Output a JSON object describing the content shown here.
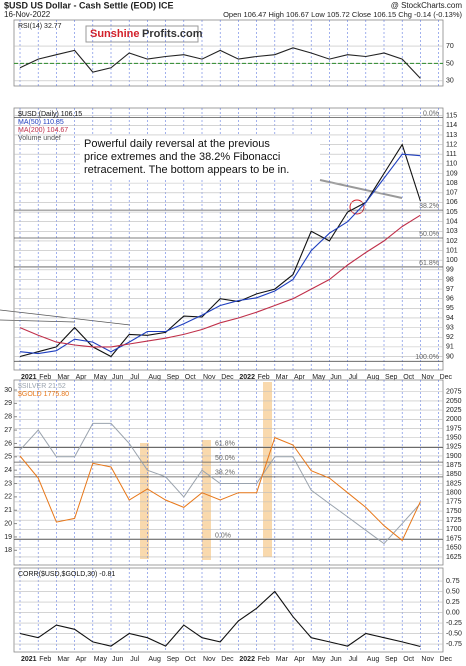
{
  "header": {
    "title": "$USD US Dollar - Cash Settle (EOD) ICE",
    "date": "16-Nov-2022",
    "source": "@ StockCharts.com",
    "quote": "Open 106.47 High 106.67 Low 105.72 Close 106.15 Chg -0.14 (-0.13%)",
    "logo": [
      "Sunshine",
      "Profits.com"
    ]
  },
  "chart_data": [
    {
      "type": "line",
      "ylim": [
        24,
        100
      ],
      "yticks": [
        30,
        50,
        70
      ],
      "reference_lines": [
        {
          "value": 50,
          "color": "#2a8a2a"
        }
      ],
      "series": [
        {
          "name": "RSI(14) 32.77",
          "color": "#222222",
          "values": [
            45,
            55,
            60,
            65,
            40,
            45,
            62,
            55,
            58,
            60,
            55,
            65,
            55,
            58,
            60,
            68,
            62,
            55,
            60,
            58,
            62,
            55,
            32.77,
            null
          ]
        }
      ]
    },
    {
      "type": "line",
      "ylim": [
        88.6,
        115.8
      ],
      "yticks": [
        90,
        91,
        92,
        93,
        94,
        95,
        96,
        97,
        98,
        99,
        100,
        101,
        102,
        103,
        104,
        105,
        106,
        107,
        108,
        109,
        110,
        111,
        112,
        113,
        114,
        115
      ],
      "categories": [
        "2021",
        "Feb",
        "Mar",
        "Apr",
        "May",
        "Jun",
        "Jul",
        "Aug",
        "Sep",
        "Oct",
        "Nov",
        "Dec",
        "2022",
        "Feb",
        "Mar",
        "Apr",
        "May",
        "Jun",
        "Jul",
        "Aug",
        "Sep",
        "Oct",
        "Nov",
        "Dec"
      ],
      "series": [
        {
          "name": "$USD (Daily) 106.15",
          "color": "#111111",
          "values": [
            90.0,
            90.5,
            91.0,
            93.0,
            91.0,
            90.0,
            92.3,
            92.2,
            92.5,
            94.2,
            94.1,
            96.0,
            95.7,
            96.5,
            97.0,
            98.5,
            103.0,
            102.0,
            105.0,
            106.0,
            109.0,
            112.0,
            106.15,
            null
          ]
        },
        {
          "name": "MA(50) 110.85",
          "color": "#1f3fbf",
          "values": [
            90.5,
            90.3,
            90.6,
            91.8,
            91.5,
            90.5,
            91.5,
            92.6,
            92.6,
            93.4,
            94.3,
            95.3,
            95.8,
            96.1,
            96.8,
            98.0,
            101.0,
            102.8,
            104.0,
            106.0,
            108.5,
            111.0,
            110.85,
            null
          ]
        },
        {
          "name": "MA(200) 104.67",
          "color": "#c0304a",
          "values": [
            93.0,
            92.2,
            91.5,
            91.2,
            91.0,
            91.0,
            91.3,
            91.6,
            91.9,
            92.3,
            92.8,
            93.5,
            94.0,
            94.6,
            95.3,
            96.0,
            97.0,
            98.0,
            99.5,
            100.8,
            102.0,
            103.5,
            104.67,
            null
          ]
        }
      ],
      "legend_extra": "Volume undef",
      "fib": [
        {
          "label": "0.0%",
          "value": 114.8
        },
        {
          "label": "38.2%",
          "value": 105.2
        },
        {
          "label": "50.0%",
          "value": 102.3
        },
        {
          "label": "61.8%",
          "value": 99.3
        },
        {
          "label": "100.0%",
          "value": 89.5
        }
      ],
      "annotation": [
        "Powerful daily reversal at the previous",
        "price extremes and the 38.2% Fibonacci",
        "retracement. The bottom appears to be in."
      ]
    },
    {
      "type": "line",
      "ylim": [
        1603,
        2107
      ],
      "yticks": [
        1625,
        1650,
        1675,
        1700,
        1725,
        1750,
        1775,
        1800,
        1825,
        1850,
        1875,
        1900,
        1925,
        1950,
        1975,
        2000,
        2025,
        2050,
        2075
      ],
      "y2lim": [
        16.9,
        30.75
      ],
      "y2ticks": [
        18,
        19,
        20,
        21,
        22,
        23,
        24,
        25,
        26,
        27,
        28,
        29,
        30
      ],
      "series": [
        {
          "name": "$SILVER 21.52",
          "color": "#9aa3ad",
          "axis": "y2",
          "values": [
            25.5,
            27,
            25,
            25,
            27.5,
            27.5,
            26,
            24,
            23.5,
            22,
            24,
            23,
            23,
            23,
            25,
            25,
            22.5,
            21.5,
            20.5,
            19.5,
            18.5,
            20,
            21.52,
            null
          ]
        },
        {
          "name": "$GOLD 1775.80",
          "color": "#e8781a",
          "values": [
            1900,
            1840,
            1720,
            1730,
            1880,
            1870,
            1780,
            1810,
            1780,
            1760,
            1800,
            1780,
            1800,
            1800,
            1950,
            1930,
            1860,
            1840,
            1800,
            1760,
            1710,
            1670,
            1775.8,
            null
          ]
        }
      ],
      "fib": [
        {
          "label": "61.8%",
          "value": 25.7
        },
        {
          "label": "50.0%",
          "value": 24.6
        },
        {
          "label": "38.2%",
          "value": 23.5
        },
        {
          "label": "0.0%",
          "value": 18.8
        }
      ]
    },
    {
      "type": "line",
      "ylim": [
        -0.94,
        1.06
      ],
      "yticks": [
        {
          "value": 0.75,
          "label": "0.75"
        },
        {
          "value": 0.5,
          "label": "0.50"
        },
        {
          "value": 0.25,
          "label": "0.25"
        },
        {
          "value": 0,
          "label": "0.00"
        },
        {
          "value": -0.25,
          "label": "-0.25"
        },
        {
          "value": -0.5,
          "label": "-0.50"
        },
        {
          "value": -0.75,
          "label": "-0.75"
        }
      ],
      "categories": [
        "2021",
        "Feb",
        "Mar",
        "Apr",
        "May",
        "Jun",
        "Jul",
        "Aug",
        "Sep",
        "Oct",
        "Nov",
        "Dec",
        "2022",
        "Feb",
        "Mar",
        "Apr",
        "May",
        "Jun",
        "Jul",
        "Aug",
        "Sep",
        "Oct",
        "Nov",
        "Dec"
      ],
      "series": [
        {
          "name": "CORR($USD,$GOLD,30) -0.81",
          "color": "#111111",
          "values": [
            -0.5,
            -0.6,
            -0.3,
            -0.4,
            -0.7,
            -0.8,
            -0.5,
            -0.6,
            -0.8,
            -0.3,
            -0.6,
            -0.7,
            -0.2,
            0.1,
            0.5,
            -0.1,
            -0.6,
            -0.7,
            -0.8,
            -0.5,
            -0.6,
            -0.7,
            -0.81,
            null
          ]
        }
      ]
    }
  ]
}
